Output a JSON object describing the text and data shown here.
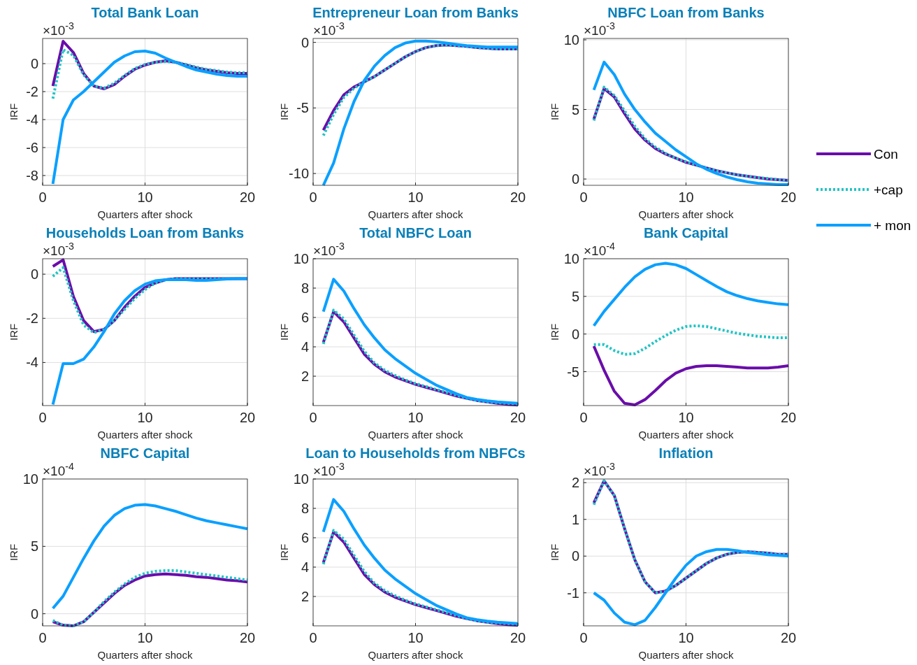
{
  "chart_data": [
    {
      "type": "line",
      "title": "Total Bank Loan",
      "xlabel": "Quarters after shock",
      "ylabel": "IRF",
      "annotations": [
        "×10$^{-3}$"
      ],
      "x": [
        1,
        2,
        3,
        4,
        5,
        6,
        7,
        8,
        9,
        10,
        11,
        12,
        13,
        14,
        15,
        16,
        17,
        18,
        19,
        20
      ],
      "xlim": [
        0,
        20
      ],
      "xticks": [
        0,
        10,
        20
      ],
      "ylim": [
        -8.7,
        1.8
      ],
      "yticks": [
        -8,
        -6,
        -4,
        -2,
        0
      ],
      "grid": true,
      "series": [
        {
          "color": "#6a0daa",
          "line_style": "solid",
          "values": [
            -1.6,
            1.6,
            0.8,
            -0.7,
            -1.6,
            -1.8,
            -1.5,
            -0.9,
            -0.4,
            -0.1,
            0.1,
            0.2,
            0.1,
            -0.1,
            -0.3,
            -0.45,
            -0.55,
            -0.65,
            -0.7,
            -0.7
          ]
        },
        {
          "color": "#22c4c4",
          "line_style": "dotted",
          "values": [
            -2.5,
            1.0,
            0.6,
            -0.8,
            -1.6,
            -1.75,
            -1.4,
            -0.85,
            -0.35,
            -0.05,
            0.1,
            0.15,
            0.1,
            -0.05,
            -0.25,
            -0.4,
            -0.5,
            -0.6,
            -0.65,
            -0.65
          ]
        },
        {
          "color": "#0aa0ff",
          "line_style": "solid",
          "values": [
            -8.6,
            -4.0,
            -2.6,
            -2.0,
            -1.3,
            -0.6,
            0.1,
            0.55,
            0.85,
            0.9,
            0.75,
            0.4,
            0.1,
            -0.2,
            -0.45,
            -0.6,
            -0.75,
            -0.85,
            -0.9,
            -0.9
          ]
        }
      ]
    },
    {
      "type": "line",
      "title": "Entrepreneur Loan from Banks",
      "xlabel": "Quarters after shock",
      "ylabel": "IRF",
      "annotations": [
        "×10$^{-3}$"
      ],
      "x": [
        1,
        2,
        3,
        4,
        5,
        6,
        7,
        8,
        9,
        10,
        11,
        12,
        13,
        14,
        15,
        16,
        17,
        18,
        19,
        20
      ],
      "xlim": [
        0,
        20
      ],
      "xticks": [
        0,
        10,
        20
      ],
      "ylim": [
        -10.9,
        0.3
      ],
      "yticks": [
        -10,
        -5,
        0
      ],
      "grid": true,
      "series": [
        {
          "color": "#6a0daa",
          "line_style": "solid",
          "values": [
            -6.7,
            -5.2,
            -4.0,
            -3.4,
            -3.0,
            -2.6,
            -2.1,
            -1.6,
            -1.1,
            -0.7,
            -0.4,
            -0.25,
            -0.2,
            -0.25,
            -0.3,
            -0.4,
            -0.45,
            -0.5,
            -0.5,
            -0.5
          ]
        },
        {
          "color": "#22c4c4",
          "line_style": "dotted",
          "values": [
            -7.1,
            -5.5,
            -4.2,
            -3.5,
            -3.0,
            -2.6,
            -2.1,
            -1.6,
            -1.1,
            -0.7,
            -0.4,
            -0.25,
            -0.2,
            -0.25,
            -0.3,
            -0.4,
            -0.45,
            -0.5,
            -0.5,
            -0.5
          ]
        },
        {
          "color": "#0aa0ff",
          "line_style": "solid",
          "values": [
            -10.9,
            -9.2,
            -6.6,
            -4.5,
            -2.9,
            -1.8,
            -1.0,
            -0.4,
            -0.05,
            0.1,
            0.1,
            0.05,
            -0.05,
            -0.15,
            -0.25,
            -0.3,
            -0.35,
            -0.35,
            -0.35,
            -0.35
          ]
        }
      ]
    },
    {
      "type": "line",
      "title": "NBFC Loan from Banks",
      "xlabel": "Quarters after shock",
      "ylabel": "IRF",
      "annotations": [
        "×10$^{-3}$"
      ],
      "x": [
        1,
        2,
        3,
        4,
        5,
        6,
        7,
        8,
        9,
        10,
        11,
        12,
        13,
        14,
        15,
        16,
        17,
        18,
        19,
        20
      ],
      "xlim": [
        0,
        20
      ],
      "xticks": [
        0,
        10,
        20
      ],
      "ylim": [
        -0.45,
        10.1
      ],
      "yticks": [
        0,
        5,
        10
      ],
      "grid": true,
      "legend": "right",
      "series": [
        {
          "name": "Con",
          "color": "#6a0daa",
          "line_style": "solid",
          "values": [
            4.3,
            6.5,
            5.9,
            4.7,
            3.6,
            2.8,
            2.2,
            1.8,
            1.5,
            1.2,
            1.0,
            0.8,
            0.6,
            0.45,
            0.3,
            0.2,
            0.1,
            0.0,
            -0.05,
            -0.1
          ]
        },
        {
          "name": "+cap",
          "color": "#22c4c4",
          "line_style": "dotted",
          "values": [
            4.2,
            6.6,
            6.0,
            4.9,
            3.8,
            2.9,
            2.3,
            1.85,
            1.5,
            1.25,
            1.0,
            0.8,
            0.6,
            0.45,
            0.3,
            0.2,
            0.1,
            0.05,
            -0.05,
            -0.1
          ]
        },
        {
          "name": "+ mon",
          "color": "#0aa0ff",
          "line_style": "solid",
          "values": [
            6.4,
            8.4,
            7.5,
            6.1,
            5.0,
            4.1,
            3.3,
            2.7,
            2.1,
            1.6,
            1.1,
            0.7,
            0.4,
            0.15,
            -0.05,
            -0.2,
            -0.3,
            -0.35,
            -0.4,
            -0.4
          ]
        }
      ]
    },
    {
      "type": "line",
      "title": "Households Loan from Banks",
      "xlabel": "Quarters after shock",
      "ylabel": "IRF",
      "annotations": [
        "×10$^{-3}$"
      ],
      "x": [
        1,
        2,
        3,
        4,
        5,
        6,
        7,
        8,
        9,
        10,
        11,
        12,
        13,
        14,
        15,
        16,
        17,
        18,
        19,
        20
      ],
      "xlim": [
        0,
        20
      ],
      "xticks": [
        0,
        10,
        20
      ],
      "ylim": [
        -5.95,
        0.7
      ],
      "yticks": [
        -4,
        -2,
        0
      ],
      "grid": true,
      "series": [
        {
          "color": "#6a0daa",
          "line_style": "solid",
          "values": [
            0.35,
            0.65,
            -1.0,
            -2.1,
            -2.6,
            -2.5,
            -2.1,
            -1.5,
            -1.0,
            -0.6,
            -0.4,
            -0.25,
            -0.2,
            -0.2,
            -0.2,
            -0.2,
            -0.2,
            -0.2,
            -0.2,
            -0.2
          ]
        },
        {
          "color": "#22c4c4",
          "line_style": "dotted",
          "values": [
            -0.1,
            0.3,
            -1.2,
            -2.3,
            -2.65,
            -2.5,
            -2.1,
            -1.6,
            -1.1,
            -0.7,
            -0.4,
            -0.25,
            -0.2,
            -0.2,
            -0.2,
            -0.2,
            -0.2,
            -0.2,
            -0.2,
            -0.2
          ]
        },
        {
          "color": "#0aa0ff",
          "line_style": "solid",
          "values": [
            -5.9,
            -4.05,
            -4.05,
            -3.85,
            -3.3,
            -2.6,
            -1.8,
            -1.2,
            -0.75,
            -0.45,
            -0.3,
            -0.25,
            -0.25,
            -0.25,
            -0.28,
            -0.28,
            -0.25,
            -0.22,
            -0.2,
            -0.2
          ]
        }
      ]
    },
    {
      "type": "line",
      "title": "Total NBFC Loan",
      "xlabel": "Quarters after shock",
      "ylabel": "IRF",
      "annotations": [
        "×10$^{-3}$"
      ],
      "x": [
        1,
        2,
        3,
        4,
        5,
        6,
        7,
        8,
        9,
        10,
        11,
        12,
        13,
        14,
        15,
        16,
        17,
        18,
        19,
        20
      ],
      "xlim": [
        0,
        20
      ],
      "xticks": [
        0,
        10,
        20
      ],
      "ylim": [
        0,
        10
      ],
      "yticks": [
        2,
        4,
        6,
        8,
        10
      ],
      "grid": true,
      "series": [
        {
          "color": "#6a0daa",
          "line_style": "solid",
          "values": [
            4.3,
            6.4,
            5.7,
            4.6,
            3.5,
            2.8,
            2.3,
            1.95,
            1.7,
            1.45,
            1.25,
            1.05,
            0.85,
            0.65,
            0.5,
            0.35,
            0.25,
            0.15,
            0.08,
            0.04
          ]
        },
        {
          "color": "#22c4c4",
          "line_style": "dotted",
          "values": [
            4.2,
            6.5,
            5.9,
            4.8,
            3.7,
            2.9,
            2.4,
            2.05,
            1.75,
            1.5,
            1.3,
            1.1,
            0.9,
            0.7,
            0.5,
            0.35,
            0.25,
            0.2,
            0.15,
            0.1
          ]
        },
        {
          "color": "#0aa0ff",
          "line_style": "solid",
          "values": [
            6.4,
            8.6,
            7.8,
            6.6,
            5.5,
            4.6,
            3.8,
            3.2,
            2.7,
            2.2,
            1.8,
            1.4,
            1.1,
            0.8,
            0.55,
            0.42,
            0.32,
            0.25,
            0.2,
            0.16
          ]
        }
      ]
    },
    {
      "type": "line",
      "title": "Bank Capital",
      "xlabel": "Quarters after shock",
      "ylabel": "IRF",
      "annotations": [
        "×10$^{-4}$"
      ],
      "x": [
        1,
        2,
        3,
        4,
        5,
        6,
        7,
        8,
        9,
        10,
        11,
        12,
        13,
        14,
        15,
        16,
        17,
        18,
        19,
        20
      ],
      "xlim": [
        0,
        20
      ],
      "xticks": [
        0,
        10,
        20
      ],
      "ylim": [
        -9.5,
        10
      ],
      "yticks": [
        -5,
        0,
        5,
        10
      ],
      "grid": true,
      "series": [
        {
          "color": "#6a0daa",
          "line_style": "solid",
          "values": [
            -1.6,
            -4.8,
            -7.6,
            -9.2,
            -9.4,
            -8.7,
            -7.5,
            -6.2,
            -5.2,
            -4.6,
            -4.3,
            -4.2,
            -4.2,
            -4.3,
            -4.4,
            -4.5,
            -4.5,
            -4.5,
            -4.4,
            -4.2
          ]
        },
        {
          "color": "#22c4c4",
          "line_style": "dotted",
          "values": [
            -1.4,
            -1.4,
            -2.2,
            -2.7,
            -2.6,
            -1.9,
            -1.0,
            -0.2,
            0.5,
            1.0,
            1.1,
            1.0,
            0.7,
            0.4,
            0.1,
            -0.1,
            -0.3,
            -0.4,
            -0.5,
            -0.5
          ]
        },
        {
          "color": "#0aa0ff",
          "line_style": "solid",
          "values": [
            1.1,
            3.0,
            4.6,
            6.2,
            7.6,
            8.6,
            9.2,
            9.4,
            9.2,
            8.7,
            7.9,
            7.1,
            6.3,
            5.6,
            5.1,
            4.7,
            4.4,
            4.2,
            4.0,
            3.9
          ]
        }
      ]
    },
    {
      "type": "line",
      "title": "NBFC Capital",
      "xlabel": "Quarters after shock",
      "ylabel": "IRF",
      "annotations": [
        "×10$^{-4}$"
      ],
      "x": [
        1,
        2,
        3,
        4,
        5,
        6,
        7,
        8,
        9,
        10,
        11,
        12,
        13,
        14,
        15,
        16,
        17,
        18,
        19,
        20
      ],
      "xlim": [
        0,
        20
      ],
      "xticks": [
        0,
        10,
        20
      ],
      "ylim": [
        -0.9,
        10
      ],
      "yticks": [
        0,
        5,
        10
      ],
      "grid": true,
      "series": [
        {
          "color": "#6a0daa",
          "line_style": "solid",
          "values": [
            -0.6,
            -0.85,
            -0.9,
            -0.6,
            0.1,
            0.8,
            1.5,
            2.1,
            2.5,
            2.8,
            2.9,
            2.95,
            2.9,
            2.85,
            2.75,
            2.7,
            2.6,
            2.5,
            2.45,
            2.35
          ]
        },
        {
          "color": "#22c4c4",
          "line_style": "dotted",
          "values": [
            -0.5,
            -0.85,
            -0.9,
            -0.6,
            0.1,
            0.9,
            1.6,
            2.2,
            2.7,
            3.0,
            3.15,
            3.2,
            3.2,
            3.1,
            3.0,
            2.9,
            2.8,
            2.7,
            2.6,
            2.5
          ]
        },
        {
          "color": "#0aa0ff",
          "line_style": "solid",
          "values": [
            0.4,
            1.3,
            2.7,
            4.1,
            5.4,
            6.5,
            7.3,
            7.8,
            8.05,
            8.1,
            8.0,
            7.8,
            7.6,
            7.35,
            7.1,
            6.9,
            6.75,
            6.6,
            6.45,
            6.3
          ]
        }
      ]
    },
    {
      "type": "line",
      "title": "Loan to Households from NBFCs",
      "xlabel": "Quarters after shock",
      "ylabel": "IRF",
      "annotations": [
        "×10$^{-3}$"
      ],
      "x": [
        1,
        2,
        3,
        4,
        5,
        6,
        7,
        8,
        9,
        10,
        11,
        12,
        13,
        14,
        15,
        16,
        17,
        18,
        19,
        20
      ],
      "xlim": [
        0,
        20
      ],
      "xticks": [
        0,
        10,
        20
      ],
      "ylim": [
        0,
        10
      ],
      "yticks": [
        2,
        4,
        6,
        8,
        10
      ],
      "grid": true,
      "series": [
        {
          "color": "#6a0daa",
          "line_style": "solid",
          "values": [
            4.3,
            6.4,
            5.7,
            4.6,
            3.5,
            2.8,
            2.3,
            1.95,
            1.7,
            1.45,
            1.25,
            1.05,
            0.85,
            0.65,
            0.5,
            0.35,
            0.25,
            0.15,
            0.08,
            0.04
          ]
        },
        {
          "color": "#22c4c4",
          "line_style": "dotted",
          "values": [
            4.2,
            6.5,
            5.9,
            4.8,
            3.7,
            2.9,
            2.4,
            2.05,
            1.75,
            1.5,
            1.3,
            1.1,
            0.9,
            0.7,
            0.5,
            0.35,
            0.25,
            0.2,
            0.15,
            0.1
          ]
        },
        {
          "color": "#0aa0ff",
          "line_style": "solid",
          "values": [
            6.4,
            8.6,
            7.8,
            6.6,
            5.5,
            4.6,
            3.8,
            3.2,
            2.7,
            2.2,
            1.8,
            1.4,
            1.1,
            0.8,
            0.55,
            0.42,
            0.32,
            0.25,
            0.2,
            0.16
          ]
        }
      ]
    },
    {
      "type": "line",
      "title": "Inflation",
      "xlabel": "Quarters after shock",
      "ylabel": "IRF",
      "annotations": [
        "×10$^{-3}$"
      ],
      "x": [
        1,
        2,
        3,
        4,
        5,
        6,
        7,
        8,
        9,
        10,
        11,
        12,
        13,
        14,
        15,
        16,
        17,
        18,
        19,
        20
      ],
      "xlim": [
        0,
        20
      ],
      "xticks": [
        0,
        10,
        20
      ],
      "ylim": [
        -1.9,
        2.1
      ],
      "yticks": [
        -1,
        0,
        1,
        2
      ],
      "grid": true,
      "series": [
        {
          "color": "#6a0daa",
          "line_style": "solid",
          "values": [
            1.45,
            2.05,
            1.65,
            0.75,
            -0.1,
            -0.7,
            -1.0,
            -0.95,
            -0.8,
            -0.6,
            -0.4,
            -0.2,
            -0.05,
            0.05,
            0.1,
            0.12,
            0.1,
            0.08,
            0.05,
            0.05
          ]
        },
        {
          "color": "#22c4c4",
          "line_style": "dotted",
          "values": [
            1.4,
            2.05,
            1.65,
            0.75,
            -0.1,
            -0.7,
            -1.0,
            -0.97,
            -0.8,
            -0.6,
            -0.4,
            -0.2,
            -0.05,
            0.05,
            0.1,
            0.12,
            0.1,
            0.08,
            0.05,
            0.05
          ]
        },
        {
          "color": "#0aa0ff",
          "line_style": "solid",
          "values": [
            -1.0,
            -1.2,
            -1.55,
            -1.8,
            -1.87,
            -1.75,
            -1.4,
            -1.0,
            -0.6,
            -0.25,
            0.0,
            0.12,
            0.18,
            0.18,
            0.15,
            0.1,
            0.07,
            0.04,
            0.02,
            0.0
          ]
        }
      ]
    }
  ]
}
